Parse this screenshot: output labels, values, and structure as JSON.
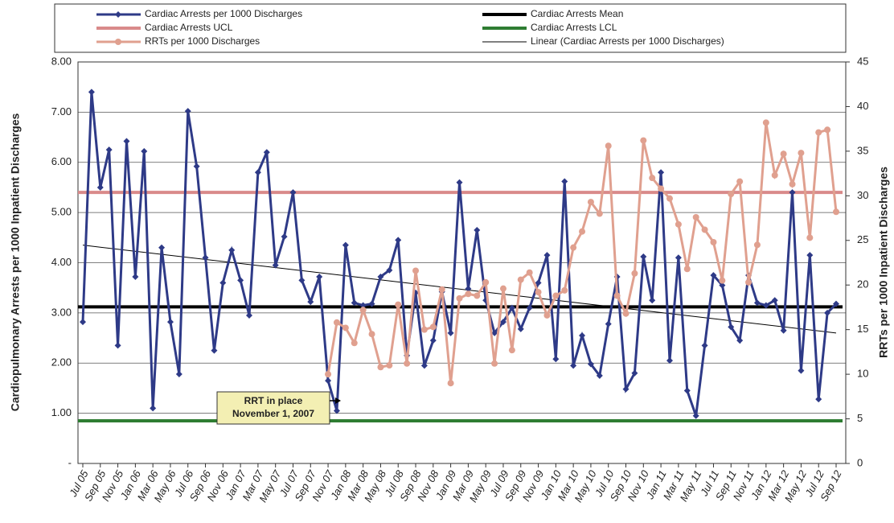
{
  "chart_data": {
    "type": "line",
    "y_label": "Cardiopulmonary Arrests per 1000 Inpatient Discharges",
    "y2_label": "RRTs per 1000 Inpatient Discharges",
    "annotation": [
      "RRT in place",
      "November 1, 2007"
    ],
    "categories": [
      "Jul 05",
      null,
      "Sep 05",
      null,
      "Nov 05",
      null,
      "Jan 06",
      null,
      "Mar 06",
      null,
      "May 06",
      null,
      "Jul 06",
      null,
      "Sep 06",
      null,
      "Nov 06",
      null,
      "Jan 07",
      null,
      "Mar 07",
      null,
      "May 07",
      null,
      "Jul 07",
      null,
      "Sep 07",
      null,
      "Nov 07",
      null,
      "Jan 08",
      null,
      "Mar 08",
      null,
      "May 08",
      null,
      "Jul 08",
      null,
      "Sep 08",
      null,
      "Nov 08",
      null,
      "Jan 09",
      null,
      "Mar 09",
      null,
      "May 09",
      null,
      "Jul 09",
      null,
      "Sep 09",
      null,
      "Nov 09",
      null,
      "Jan 10",
      null,
      "Mar 10",
      null,
      "May 10",
      null,
      "Jul 10",
      null,
      "Sep 10",
      null,
      "Nov 10",
      null,
      "Jan 11",
      null,
      "Mar 11",
      null,
      "May 11",
      null,
      "Jul 11",
      null,
      "Sep 11",
      null,
      "Nov 11",
      null,
      "Jan 12",
      null,
      "Mar 12",
      null,
      "May 12",
      null,
      "Jul 12",
      null,
      "Sep 12"
    ],
    "series": [
      {
        "name": "Cardiac Arrests per 1000 Discharges",
        "color": "#2e3a87",
        "axis": "y",
        "values": [
          2.82,
          7.4,
          5.5,
          6.25,
          2.35,
          6.42,
          3.72,
          6.22,
          1.1,
          4.3,
          2.82,
          1.78,
          7.02,
          5.92,
          4.1,
          2.25,
          3.6,
          4.25,
          3.65,
          2.95,
          5.8,
          6.2,
          3.95,
          4.52,
          5.4,
          3.65,
          3.22,
          3.72,
          1.65,
          1.05,
          4.35,
          3.2,
          3.15,
          3.18,
          3.72,
          3.85,
          4.45,
          2.15,
          3.4,
          1.95,
          2.45,
          3.42,
          2.6,
          5.6,
          3.48,
          4.65,
          3.25,
          2.6,
          2.82,
          3.1,
          2.68,
          3.1,
          3.6,
          4.15,
          2.08,
          5.62,
          1.95,
          2.55,
          1.98,
          1.75,
          2.78,
          3.72,
          1.48,
          1.8,
          4.12,
          3.25,
          5.8,
          2.05,
          4.1,
          1.45,
          0.95,
          2.35,
          3.75,
          3.55,
          2.72,
          2.45,
          3.75,
          3.2,
          3.15,
          3.25,
          2.65,
          5.4,
          1.85,
          4.15,
          1.28,
          3.0,
          3.18
        ]
      },
      {
        "name": "RRTs per 1000 Discharges",
        "color": "#e0a08f",
        "axis": "y2",
        "values": [
          null,
          null,
          null,
          null,
          null,
          null,
          null,
          null,
          null,
          null,
          null,
          null,
          null,
          null,
          null,
          null,
          null,
          null,
          null,
          null,
          null,
          null,
          null,
          null,
          null,
          null,
          null,
          null,
          10.0,
          15.8,
          15.2,
          13.5,
          17.2,
          14.5,
          10.8,
          11.0,
          17.8,
          11.2,
          21.6,
          15.0,
          15.3,
          19.5,
          9.0,
          18.5,
          19.0,
          18.8,
          20.3,
          11.2,
          19.6,
          12.7,
          20.6,
          21.4,
          19.2,
          16.6,
          18.8,
          19.4,
          24.2,
          26.0,
          29.3,
          28.0,
          35.6,
          18.8,
          16.8,
          21.3,
          36.2,
          32.0,
          30.8,
          29.7,
          26.8,
          21.8,
          27.6,
          26.2,
          24.8,
          20.5,
          30.2,
          31.6,
          20.3,
          24.5,
          38.2,
          32.3,
          34.7,
          31.3,
          34.8,
          25.3,
          37.1,
          37.4,
          28.2
        ]
      }
    ],
    "reference_lines": [
      {
        "name": "Cardiac Arrests Mean",
        "color": "#000000",
        "value": 3.12
      },
      {
        "name": "Cardiac Arrests UCL",
        "color": "#d98a8a",
        "value": 5.4
      },
      {
        "name": "Cardiac Arrests LCL",
        "color": "#2e7d32",
        "value": 0.85
      }
    ],
    "trendline": {
      "name": "Linear (Cardiac Arrests per 1000 Discharges)",
      "color": "#000000",
      "values": [
        4.35,
        2.6
      ]
    },
    "ylim": [
      0,
      8
    ],
    "yticks": [
      {
        "value": 0,
        "label": "-"
      },
      {
        "value": 1,
        "label": "1.00"
      },
      {
        "value": 2,
        "label": "2.00"
      },
      {
        "value": 3,
        "label": "3.00"
      },
      {
        "value": 4,
        "label": "4.00"
      },
      {
        "value": 5,
        "label": "5.00"
      },
      {
        "value": 6,
        "label": "6.00"
      },
      {
        "value": 7,
        "label": "7.00"
      },
      {
        "value": 8,
        "label": "8.00"
      }
    ],
    "y2lim": [
      0,
      45
    ],
    "y2ticks": [
      0,
      5,
      10,
      15,
      20,
      25,
      30,
      35,
      40,
      45
    ],
    "grid": true
  }
}
